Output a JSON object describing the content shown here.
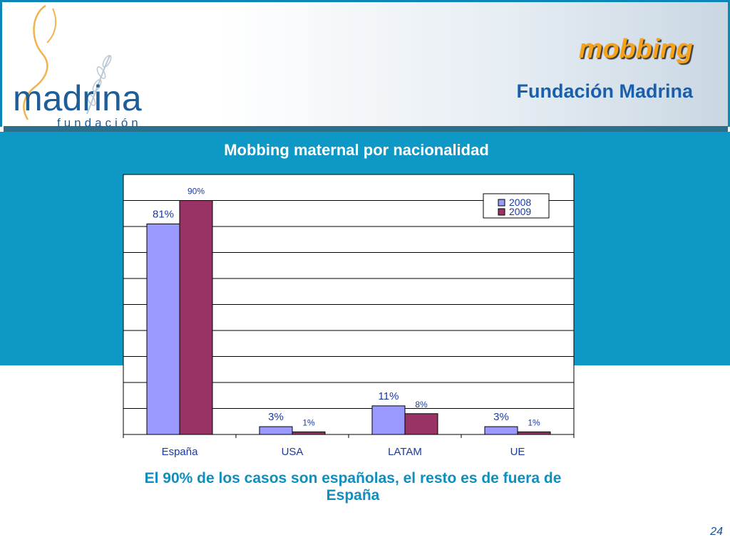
{
  "slide": {
    "title": "mobbing",
    "subtitle": "Fundación Madrina",
    "caption": "El 90% de los casos son españolas, el resto es de fuera de España",
    "page_number": "24"
  },
  "logo": {
    "name": "madrina",
    "tagline": "fundación"
  },
  "colors": {
    "accent_blue": "#0d98c5",
    "title_orange": "#f7a21b",
    "series_2008": "#9999ff",
    "series_2009": "#993366"
  },
  "chart_data": {
    "type": "bar",
    "title": "Mobbing maternal por nacionalidad",
    "categories": [
      "España",
      "USA",
      "LATAM",
      "UE"
    ],
    "series": [
      {
        "name": "2008",
        "values": [
          81,
          3,
          11,
          3
        ],
        "labels": [
          "81%",
          "3%",
          "11%",
          "3%"
        ],
        "color": "#9999ff"
      },
      {
        "name": "2009",
        "values": [
          90,
          1,
          8,
          1
        ],
        "labels": [
          "90%",
          "1%",
          "8%",
          "1%"
        ],
        "color": "#993366"
      }
    ],
    "ylim": [
      0,
      100
    ],
    "grid": true,
    "legend": "top-right",
    "xlabel": "",
    "ylabel": ""
  }
}
